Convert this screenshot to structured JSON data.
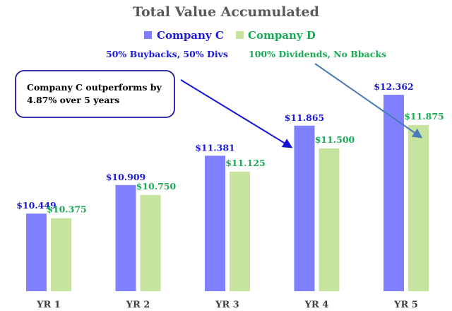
{
  "chart_data": {
    "type": "bar",
    "title": "Total Value Accumulated",
    "categories": [
      "YR 1",
      "YR 2",
      "YR 3",
      "YR 4",
      "YR 5"
    ],
    "series": [
      {
        "name": "Company C",
        "color": "#8080ff",
        "label_color": "#1a1adb",
        "values": [
          10.449,
          10.909,
          11.381,
          11.865,
          12.362
        ],
        "labels": [
          "$10.449",
          "$10.909",
          "$11.381",
          "$11.865",
          "$12.362"
        ]
      },
      {
        "name": "Company D",
        "color": "#c6e3a0",
        "label_color": "#1aaa55",
        "values": [
          10.375,
          10.75,
          11.125,
          11.5,
          11.875
        ],
        "labels": [
          "$10.375",
          "$10.750",
          "$11.125",
          "$11.500",
          "$11.875"
        ]
      }
    ],
    "ylim": [
      9.2,
      12.75
    ],
    "grid": false,
    "legend_position": "top-center",
    "annotations": {
      "company_c_note": "50% Buybacks, 50% Divs",
      "company_d_note": "100% Dividends, No Bbacks",
      "callout_line1": "Company C outperforms by",
      "callout_line2": "4.87% over 5 years"
    }
  }
}
